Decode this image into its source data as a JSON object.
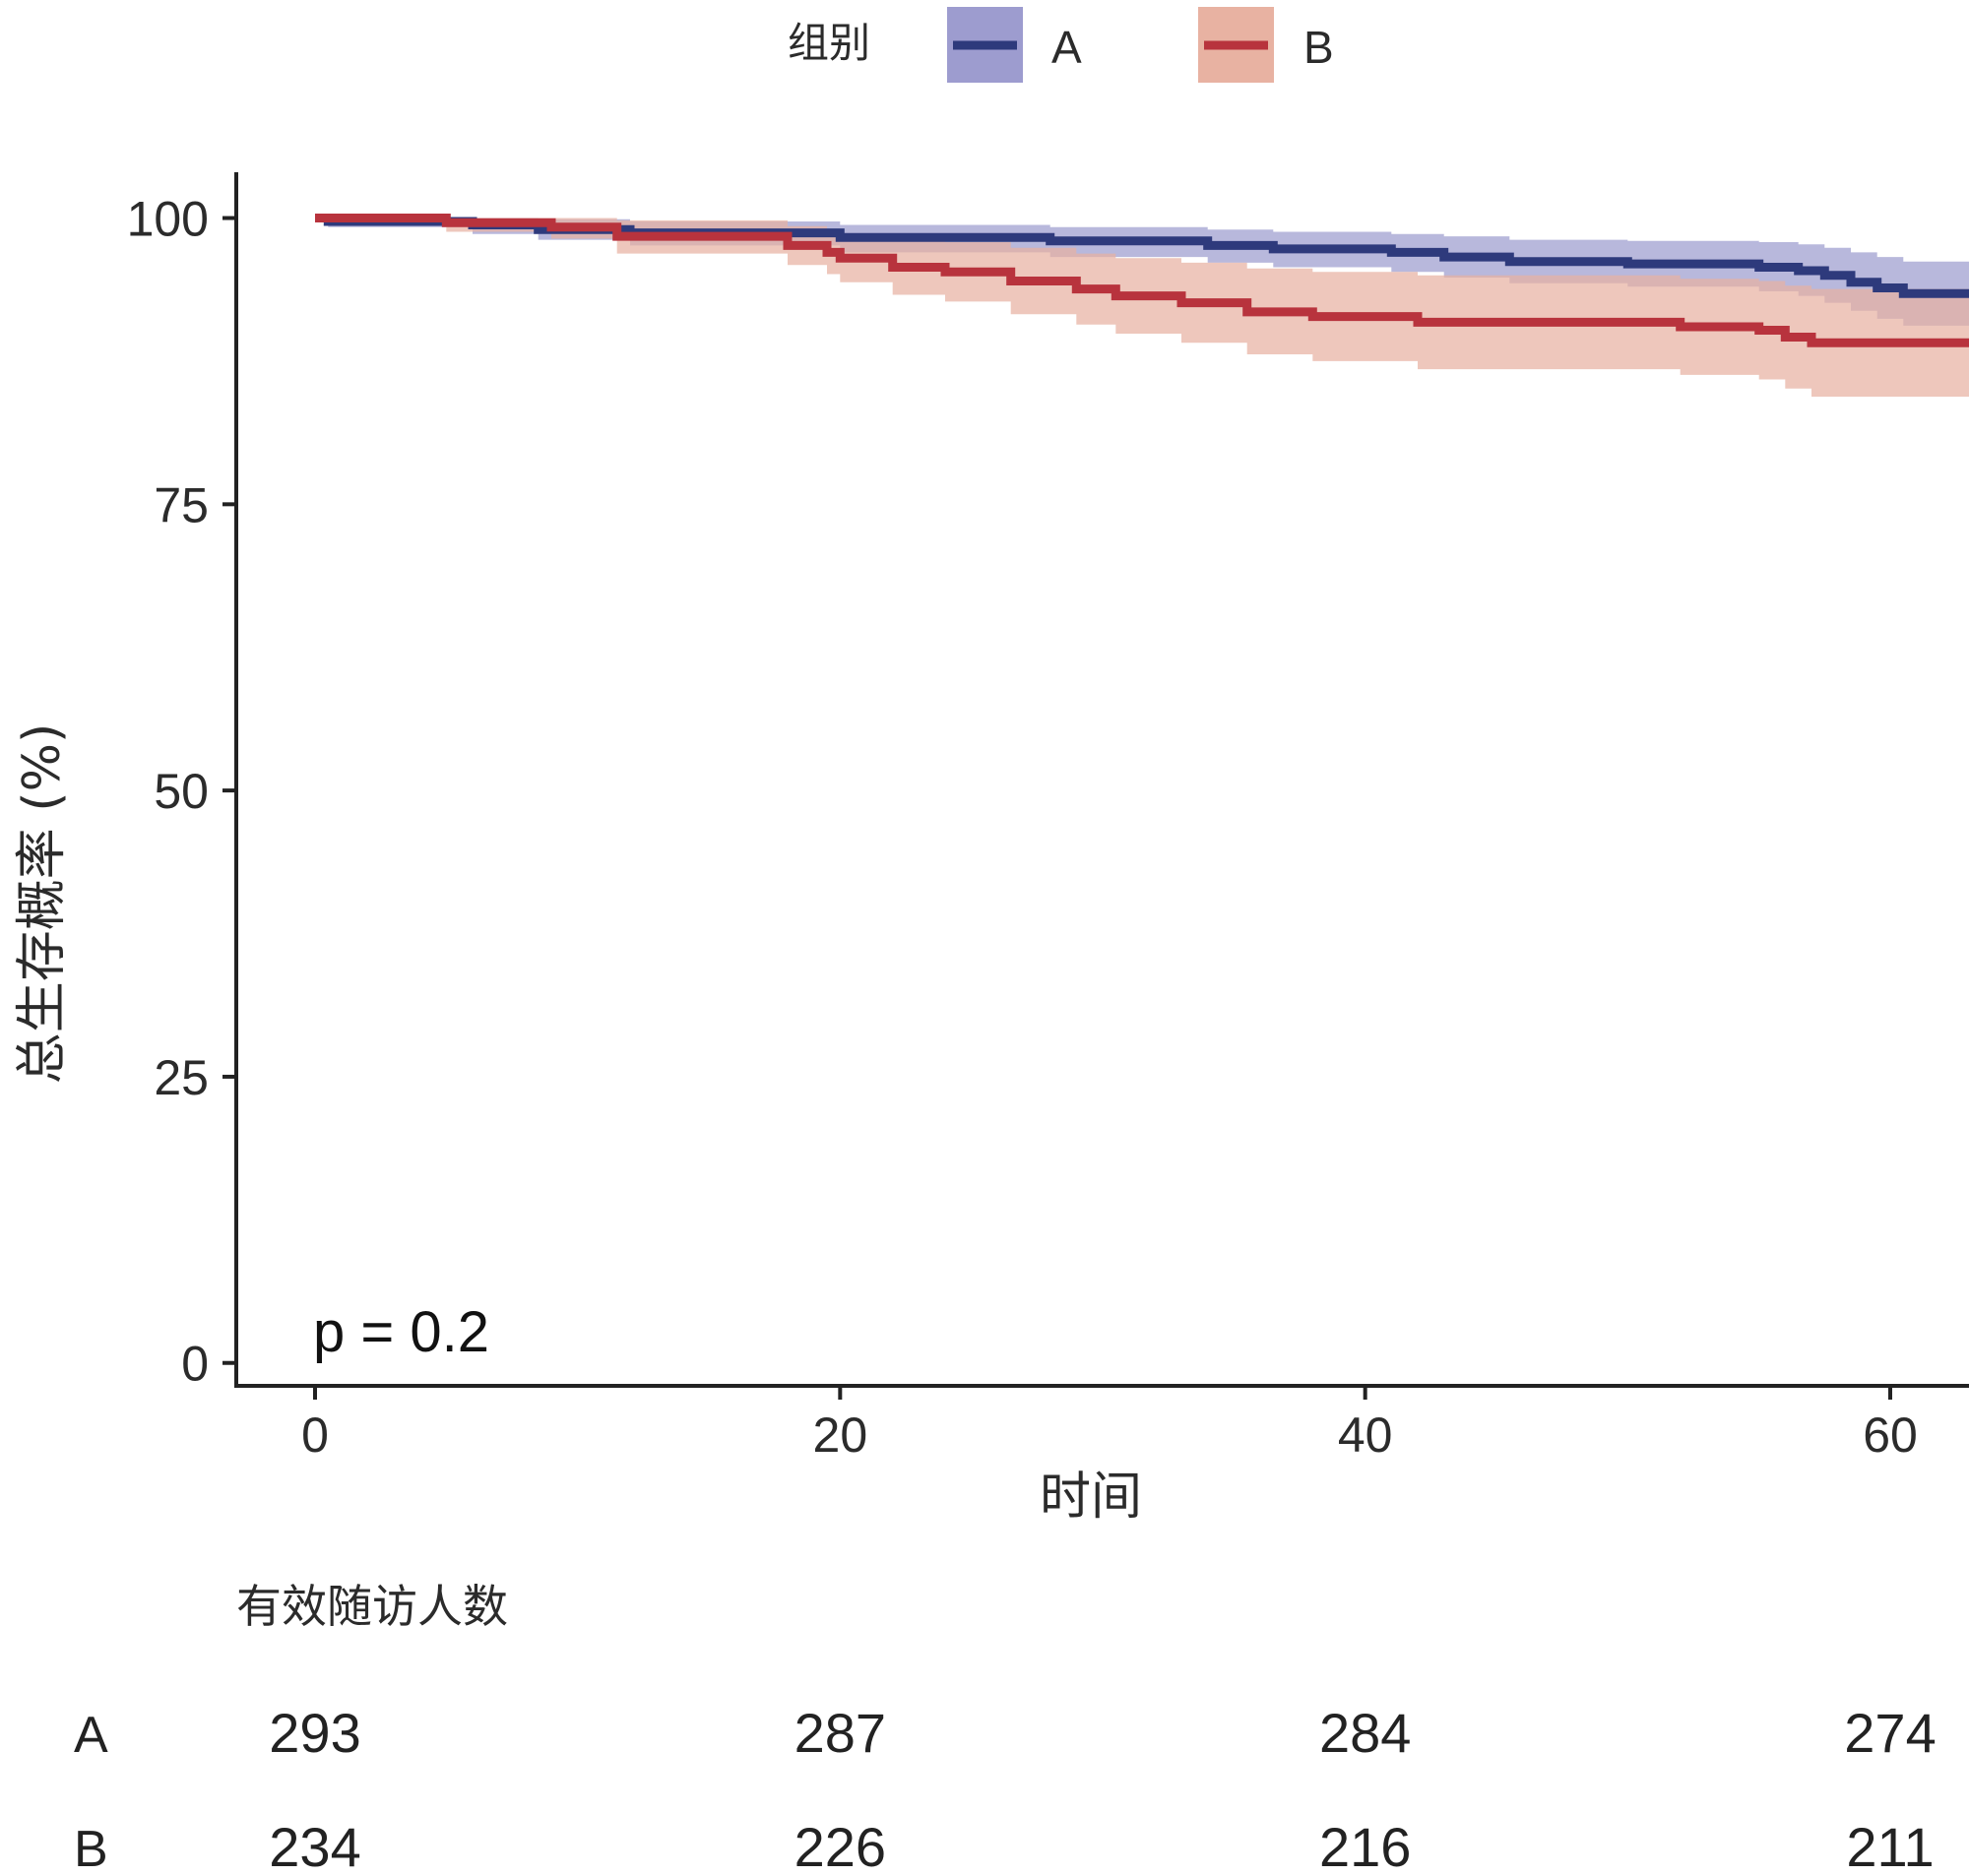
{
  "chart_data": {
    "type": "line",
    "subtype": "kaplan-meier",
    "xlabel": "时间",
    "ylabel": "总生存概率 (%)",
    "xlim": [
      -3,
      63
    ],
    "ylim": [
      -2,
      104
    ],
    "xticks": [
      0,
      20,
      40,
      60
    ],
    "yticks": [
      0,
      25,
      50,
      75,
      100
    ],
    "legend": {
      "title": "组别",
      "position": "top"
    },
    "pvalue": "p = 0.2",
    "series": [
      {
        "name": "A",
        "color": "#2e3a7c",
        "band_color": "#9d9ccf",
        "steps": [
          [
            0,
            100
          ],
          [
            0.5,
            99.7
          ],
          [
            6,
            99.4
          ],
          [
            8.5,
            99
          ],
          [
            12,
            98.7
          ],
          [
            20,
            98.3
          ],
          [
            28,
            98
          ],
          [
            34,
            97.6
          ],
          [
            36.5,
            97.3
          ],
          [
            41,
            97
          ],
          [
            43,
            96.6
          ],
          [
            45.5,
            96.2
          ],
          [
            50,
            96
          ],
          [
            55,
            95.7
          ],
          [
            56.5,
            95.4
          ],
          [
            57.5,
            95
          ],
          [
            58.5,
            94.4
          ],
          [
            59.5,
            93.9
          ],
          [
            60.5,
            93.4
          ],
          [
            63,
            93.4
          ]
        ],
        "upper": [
          [
            0,
            100
          ],
          [
            0.5,
            100
          ],
          [
            6,
            100
          ],
          [
            8.5,
            99.9
          ],
          [
            12,
            99.7
          ],
          [
            20,
            99.4
          ],
          [
            28,
            99.2
          ],
          [
            34,
            99
          ],
          [
            36.5,
            98.8
          ],
          [
            41,
            98.6
          ],
          [
            43,
            98.4
          ],
          [
            45.5,
            98.1
          ],
          [
            50,
            98
          ],
          [
            55,
            97.9
          ],
          [
            56.5,
            97.7
          ],
          [
            57.5,
            97.4
          ],
          [
            58.5,
            97
          ],
          [
            59.5,
            96.6
          ],
          [
            60.5,
            96.2
          ],
          [
            63,
            96.2
          ]
        ],
        "lower": [
          [
            0,
            100
          ],
          [
            0.5,
            99.2
          ],
          [
            6,
            98.6
          ],
          [
            8.5,
            98.1
          ],
          [
            12,
            97.6
          ],
          [
            20,
            97
          ],
          [
            28,
            96.6
          ],
          [
            34,
            96.1
          ],
          [
            36.5,
            95.7
          ],
          [
            41,
            95.3
          ],
          [
            43,
            94.8
          ],
          [
            45.5,
            94.3
          ],
          [
            50,
            94
          ],
          [
            55,
            93.6
          ],
          [
            56.5,
            93.2
          ],
          [
            57.5,
            92.6
          ],
          [
            58.5,
            91.9
          ],
          [
            59.5,
            91.2
          ],
          [
            60.5,
            90.6
          ],
          [
            63,
            90.6
          ]
        ]
      },
      {
        "name": "B",
        "color": "#b8333d",
        "band_color": "#e8b2a2",
        "steps": [
          [
            0,
            100
          ],
          [
            5,
            99.6
          ],
          [
            9,
            99.2
          ],
          [
            11.5,
            98.4
          ],
          [
            18,
            97.6
          ],
          [
            19.5,
            97
          ],
          [
            20,
            96.5
          ],
          [
            22,
            95.7
          ],
          [
            24,
            95.3
          ],
          [
            26.5,
            94.5
          ],
          [
            29,
            93.8
          ],
          [
            30.5,
            93.2
          ],
          [
            33,
            92.6
          ],
          [
            35.5,
            91.8
          ],
          [
            38,
            91.4
          ],
          [
            42,
            90.9
          ],
          [
            52,
            90.5
          ],
          [
            55,
            90.2
          ],
          [
            56,
            89.6
          ],
          [
            57,
            89.1
          ],
          [
            63,
            89.1
          ]
        ],
        "upper": [
          [
            0,
            100
          ],
          [
            5,
            100
          ],
          [
            9,
            100
          ],
          [
            11.5,
            99.8
          ],
          [
            18,
            99.3
          ],
          [
            19.5,
            98.9
          ],
          [
            20,
            98.6
          ],
          [
            22,
            98.1
          ],
          [
            24,
            97.9
          ],
          [
            26.5,
            97.4
          ],
          [
            29,
            96.9
          ],
          [
            30.5,
            96.5
          ],
          [
            33,
            96.1
          ],
          [
            35.5,
            95.6
          ],
          [
            38,
            95.3
          ],
          [
            42,
            95
          ],
          [
            52,
            94.7
          ],
          [
            55,
            94.5
          ],
          [
            56,
            94.1
          ],
          [
            57,
            93.8
          ],
          [
            63,
            93.8
          ]
        ],
        "lower": [
          [
            0,
            100
          ],
          [
            5,
            98.8
          ],
          [
            9,
            98.2
          ],
          [
            11.5,
            96.9
          ],
          [
            18,
            95.9
          ],
          [
            19.5,
            95.1
          ],
          [
            20,
            94.4
          ],
          [
            22,
            93.3
          ],
          [
            24,
            92.7
          ],
          [
            26.5,
            91.6
          ],
          [
            29,
            90.7
          ],
          [
            30.5,
            89.9
          ],
          [
            33,
            89.1
          ],
          [
            35.5,
            88.1
          ],
          [
            38,
            87.5
          ],
          [
            42,
            86.8
          ],
          [
            52,
            86.3
          ],
          [
            55,
            85.9
          ],
          [
            56,
            85.1
          ],
          [
            57,
            84.4
          ],
          [
            63,
            84.4
          ]
        ]
      }
    ],
    "risk_table": {
      "title": "有效随访人数",
      "times": [
        0,
        20,
        40,
        60
      ],
      "rows": [
        {
          "group": "A",
          "counts": [
            "293",
            "287",
            "284",
            "274"
          ]
        },
        {
          "group": "B",
          "counts": [
            "234",
            "226",
            "216",
            "211"
          ]
        }
      ]
    }
  }
}
